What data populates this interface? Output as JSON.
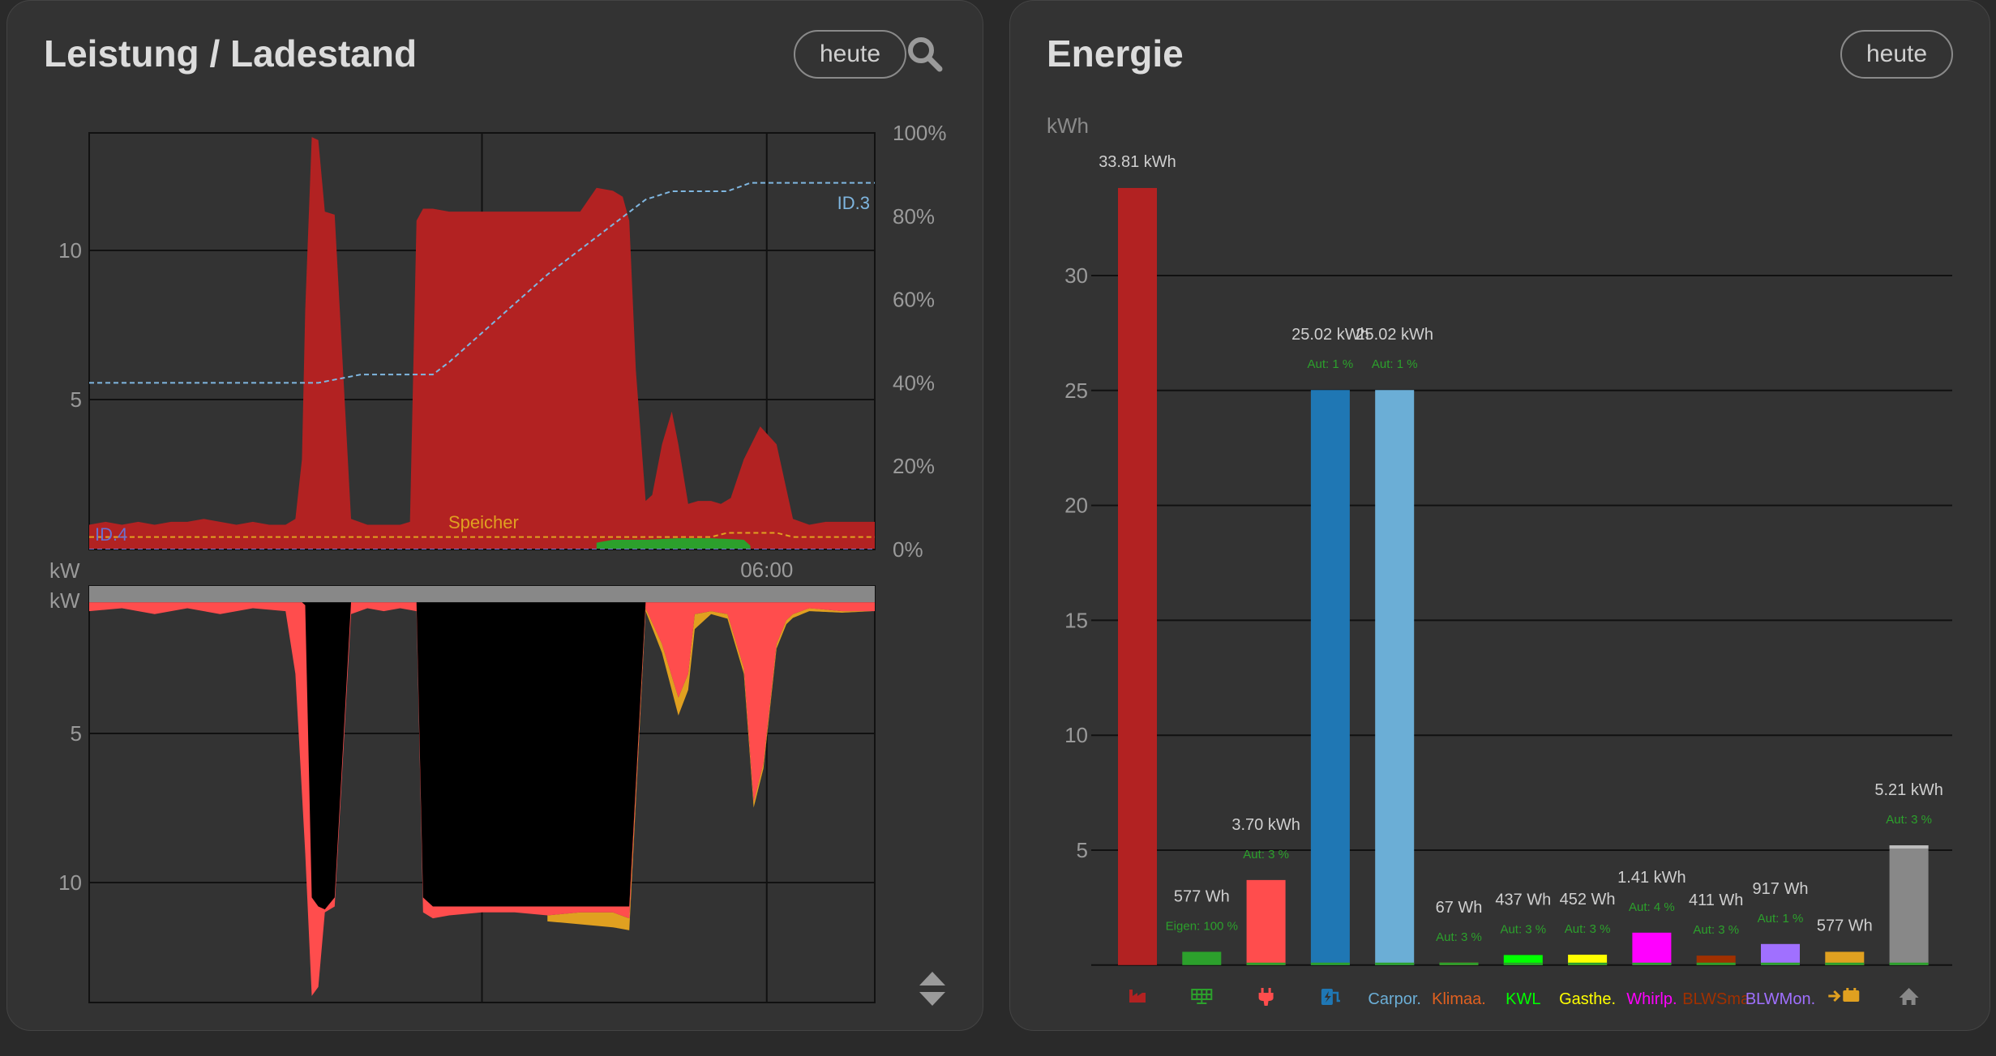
{
  "colors": {
    "netz": "#b22222",
    "pv": "#2ca02c",
    "verbrauch": "#ff4d4d",
    "speicher": "#e0a020",
    "batterie": "#000000",
    "haus": "#888888",
    "id3": "#7fb6e0",
    "id4": "#6a6fd0"
  },
  "left_card": {
    "title": "Leistung / Ladestand",
    "date_button": "heute",
    "search_icon": "search-icon",
    "sort_icon": "sort-updown-icon"
  },
  "right_card": {
    "title": "Energie",
    "date_button": "heute"
  },
  "chart_data": [
    {
      "type": "area",
      "y_unit": "kW",
      "y_ticks": [
        "10",
        "5"
      ],
      "y2_ticks": [
        "100%",
        "80%",
        "60%",
        "40%",
        "20%",
        "0%"
      ],
      "x_tick_label": "06:00",
      "ylim": [
        0,
        14
      ],
      "y2lim": [
        0,
        100
      ],
      "series": [
        {
          "name": "",
          "key": "netz",
          "x": [
            0,
            0.5,
            1,
            1.5,
            2,
            2.5,
            3,
            3.5,
            4,
            4.5,
            5,
            5.5,
            6,
            6.3,
            6.5,
            6.6,
            6.8,
            7,
            7.2,
            7.5,
            8,
            8.5,
            9,
            9.5,
            9.8,
            10,
            10.2,
            10.5,
            11,
            12,
            13,
            14,
            15,
            15.5,
            16,
            16.3,
            16.5,
            16.7,
            17,
            17.2,
            17.5,
            17.8,
            18,
            18.3,
            18.6,
            19,
            19.3,
            19.6,
            20,
            20.5,
            21,
            21.5,
            22,
            22.5,
            23,
            23.5,
            24
          ],
          "values": [
            0.8,
            0.9,
            0.8,
            0.9,
            0.8,
            0.9,
            0.9,
            1.0,
            0.9,
            0.8,
            0.9,
            0.8,
            0.8,
            1.0,
            3.0,
            8.0,
            13.8,
            13.7,
            11.3,
            11.2,
            1.0,
            0.8,
            0.8,
            0.8,
            0.9,
            11.0,
            11.4,
            11.4,
            11.3,
            11.3,
            11.3,
            11.3,
            11.3,
            12.1,
            12.0,
            11.8,
            11.0,
            6.0,
            1.6,
            1.8,
            3.5,
            4.6,
            3.5,
            1.5,
            1.6,
            1.6,
            1.5,
            1.7,
            3.0,
            4.1,
            3.5,
            1.0,
            0.8,
            0.9,
            0.9,
            0.9,
            0.9
          ]
        },
        {
          "name": "",
          "key": "pv",
          "x": [
            15.5,
            16,
            17,
            18,
            19,
            20,
            20.2
          ],
          "values": [
            0.2,
            0.3,
            0.3,
            0.35,
            0.35,
            0.3,
            0.1
          ]
        }
      ],
      "soc_series": [
        {
          "name": "ID.3",
          "key": "id3",
          "x": [
            0,
            7,
            8.3,
            10.5,
            11,
            12,
            13,
            14,
            15,
            16,
            17,
            17.8,
            19.5,
            20.2,
            24
          ],
          "values": [
            40,
            40,
            42,
            42,
            45,
            52,
            59,
            66,
            72,
            78,
            84,
            86,
            86,
            88,
            88
          ]
        },
        {
          "name": "ID.4",
          "key": "id4",
          "x": [
            0,
            24
          ],
          "values": [
            0,
            0
          ]
        },
        {
          "name": "Speicher",
          "key": "speicher",
          "x": [
            0,
            19,
            19.5,
            21,
            21.5,
            24
          ],
          "values": [
            3,
            3,
            4,
            4,
            3,
            3
          ]
        }
      ]
    },
    {
      "type": "area",
      "y_unit": "kW",
      "y_ticks": [
        "5",
        "10"
      ],
      "ylim": [
        0,
        14
      ],
      "inverted": true,
      "series": [
        {
          "name": "",
          "key": "haus",
          "x": [
            0,
            24
          ],
          "values": [
            0.6,
            0.6
          ]
        },
        {
          "name": "",
          "key": "batterie",
          "x": [
            0,
            6.5,
            6.6,
            6.8,
            7,
            7.2,
            7.5,
            8,
            8.3,
            10,
            10.2,
            10.5,
            11,
            12,
            13,
            14,
            15,
            16,
            16.5,
            17,
            24
          ],
          "values": [
            0.6,
            0.6,
            0.7,
            10.5,
            10.8,
            10.9,
            10.5,
            0.6,
            0.6,
            0.6,
            10.5,
            10.8,
            10.8,
            10.8,
            10.8,
            10.8,
            10.8,
            10.8,
            10.8,
            0.6,
            0.6
          ]
        },
        {
          "name": "",
          "key": "verbrauch",
          "x": [
            0,
            1,
            2,
            3,
            4,
            5,
            6,
            6.3,
            6.6,
            6.8,
            7,
            7.2,
            7.5,
            8,
            8.5,
            9,
            9.5,
            10,
            10.2,
            10.5,
            11,
            12,
            13,
            14,
            15,
            16,
            16.5,
            17,
            17.5,
            18,
            18.3,
            18.5,
            19,
            19.5,
            20,
            20.3,
            20.6,
            21,
            21.3,
            21.5,
            22,
            23,
            24
          ],
          "values": [
            0.9,
            0.8,
            1.0,
            0.8,
            1.0,
            0.8,
            0.9,
            3.0,
            9.0,
            13.8,
            13.5,
            11.0,
            10.8,
            1.0,
            0.8,
            0.9,
            0.8,
            0.9,
            11.0,
            11.2,
            11.1,
            11.0,
            11.0,
            11.1,
            11.0,
            11.0,
            11.2,
            0.8,
            2.0,
            3.8,
            3.0,
            1.0,
            0.9,
            1.0,
            2.8,
            7.3,
            6.0,
            2.0,
            1.2,
            1.0,
            0.8,
            0.9,
            0.9
          ]
        },
        {
          "name": "",
          "key": "speicher",
          "x": [
            14,
            15,
            16,
            16.5,
            17,
            17.5,
            18,
            18.5,
            19,
            20,
            24
          ],
          "values": [
            0.2,
            0.4,
            0.5,
            0.4,
            0.1,
            0.3,
            0.6,
            0.5,
            0.1,
            0.2,
            0.0
          ]
        }
      ]
    },
    {
      "type": "bar",
      "title": "",
      "ylabel": "kWh",
      "ylim": [
        0,
        34
      ],
      "y_ticks": [
        5,
        10,
        15,
        20,
        25,
        30
      ],
      "categories": [
        "factory-icon",
        "solar-panel-icon",
        "plug-icon",
        "charging-station-icon",
        "Carpor.",
        "Klimaa.",
        "KWL",
        "Gasthe.",
        "Whirlp.",
        "BLWSma",
        "BLWMon.",
        "arrow-battery-icon",
        "home-icon"
      ],
      "category_colors": [
        "#b22222",
        "#2ca02c",
        "#ff4d4d",
        "#1f77b4",
        "#6baed6",
        "#e06020",
        "#00ff00",
        "#ffff00",
        "#ff00ff",
        "#a03000",
        "#a070ff",
        "#e0a020",
        "#888888"
      ],
      "values": [
        33.81,
        0.577,
        3.7,
        25.02,
        25.02,
        0.067,
        0.437,
        0.452,
        1.41,
        0.411,
        0.917,
        0.577,
        5.21
      ],
      "value_labels": [
        "33.81 kWh",
        "577 Wh",
        "3.70 kWh",
        "25.02 kWh",
        "25.02 kWh",
        "67 Wh",
        "437 Wh",
        "452 Wh",
        "1.41 kWh",
        "411 Wh",
        "917 Wh",
        "577 Wh",
        "5.21 kWh"
      ],
      "sub_labels": [
        "",
        "Eigen: 100 %",
        "Aut: 3 %",
        "Aut: 1 %",
        "Aut: 1 %",
        "Aut: 3 %",
        "Aut: 3 %",
        "Aut: 3 %",
        "Aut: 4 %",
        "Aut: 3 %",
        "Aut: 1 %",
        "",
        "Aut: 3 %"
      ]
    }
  ]
}
